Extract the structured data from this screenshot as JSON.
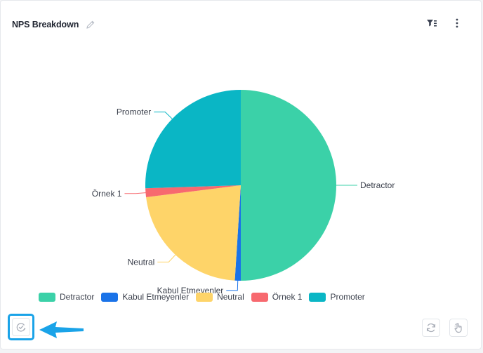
{
  "widget": {
    "title": "NPS Breakdown",
    "icons": {
      "edit": "pencil-icon",
      "filter": "filter-list-icon",
      "menu": "more-vertical-icon",
      "action": "check-edit-icon",
      "refresh": "refresh-icon",
      "interact": "hand-pointer-icon"
    }
  },
  "chart_data": {
    "type": "pie",
    "categories": [
      "Detractor",
      "Kabul Etmeyenler",
      "Neutral",
      "Örnek 1",
      "Promoter"
    ],
    "values": [
      50.0,
      1.0,
      22.0,
      1.5,
      25.5
    ],
    "colors": [
      "#3bd1a8",
      "#1a73e8",
      "#fed469",
      "#f7696f",
      "#0ab6c5"
    ],
    "legend_position": "bottom",
    "title": ""
  },
  "legend": {
    "items": [
      {
        "label": "Detractor",
        "color": "#3bd1a8"
      },
      {
        "label": "Kabul Etmeyenler",
        "color": "#1a73e8"
      },
      {
        "label": "Neutral",
        "color": "#fed469"
      },
      {
        "label": "Örnek 1",
        "color": "#f7696f"
      },
      {
        "label": "Promoter",
        "color": "#0ab6c5"
      }
    ]
  },
  "accent": "#1aa3e8"
}
